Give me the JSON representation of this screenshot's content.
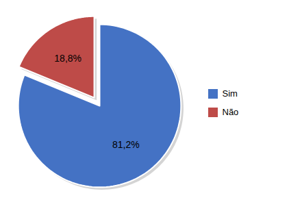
{
  "chart_data": {
    "type": "pie",
    "categories": [
      "Sim",
      "Não"
    ],
    "values": [
      81.2,
      18.8
    ],
    "value_labels": [
      "81,2%",
      "18,8%"
    ],
    "colors": [
      "#4472C4",
      "#BE4B48"
    ],
    "data_labels": true,
    "legend": "right"
  }
}
